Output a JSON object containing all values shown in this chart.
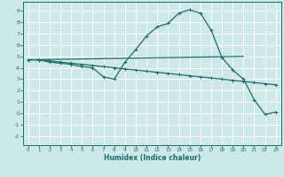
{
  "xlabel": "Humidex (Indice chaleur)",
  "bg_color": "#cce8e8",
  "grid_color": "#ffffff",
  "line_color": "#1a6e6a",
  "xlim": [
    -0.5,
    23.5
  ],
  "ylim": [
    -2.8,
    9.8
  ],
  "xticks": [
    0,
    1,
    2,
    3,
    4,
    5,
    6,
    7,
    8,
    9,
    10,
    11,
    12,
    13,
    14,
    15,
    16,
    17,
    18,
    19,
    20,
    21,
    22,
    23
  ],
  "yticks": [
    -2,
    -1,
    0,
    1,
    2,
    3,
    4,
    5,
    6,
    7,
    8,
    9
  ],
  "line1_x": [
    0,
    1,
    2,
    3,
    4,
    5,
    6,
    7,
    8,
    9,
    10,
    11,
    12,
    13,
    14,
    15,
    16,
    17,
    18,
    19,
    20,
    21,
    22,
    23
  ],
  "line1_y": [
    4.7,
    4.7,
    4.5,
    4.4,
    4.3,
    4.1,
    4.0,
    3.2,
    3.0,
    4.5,
    5.6,
    6.8,
    7.6,
    7.9,
    8.8,
    9.1,
    8.8,
    7.3,
    4.9,
    3.8,
    3.0,
    1.2,
    -0.1,
    0.1
  ],
  "line2_x": [
    0,
    1,
    2,
    3,
    4,
    5,
    6,
    7,
    8,
    9,
    10,
    11,
    12,
    13,
    14,
    15,
    16,
    17,
    18,
    19,
    20,
    21,
    22,
    23
  ],
  "line2_y": [
    4.7,
    4.7,
    4.6,
    4.5,
    4.4,
    4.3,
    4.2,
    4.1,
    4.0,
    3.9,
    3.8,
    3.7,
    3.6,
    3.5,
    3.4,
    3.3,
    3.2,
    3.1,
    3.0,
    2.9,
    2.8,
    2.7,
    2.6,
    2.5
  ],
  "line3_x": [
    0,
    20
  ],
  "line3_y": [
    4.7,
    5.0
  ]
}
